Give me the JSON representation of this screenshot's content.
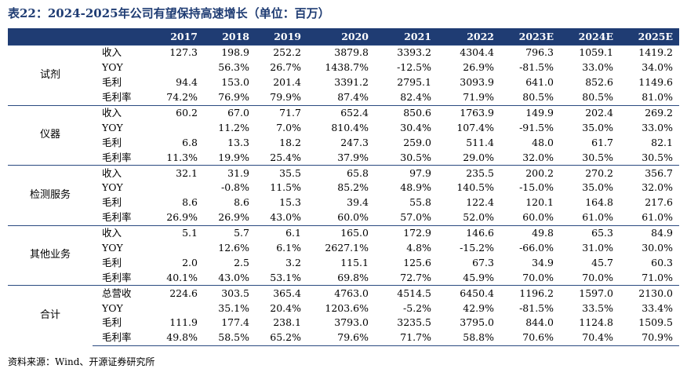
{
  "title": "表22：2024-2025年公司有望保持高速增长（单位：百万）",
  "columns": [
    "",
    "",
    "2017",
    "2018",
    "2019",
    "2020",
    "2021",
    "2022",
    "2023E",
    "2024E",
    "2025E"
  ],
  "groups": [
    {
      "name": "试剂",
      "rows": [
        {
          "metric": "收入",
          "values": [
            "127.3",
            "198.9",
            "252.2",
            "3879.8",
            "3393.2",
            "4304.4",
            "796.3",
            "1059.1",
            "1419.2"
          ]
        },
        {
          "metric": "YOY",
          "values": [
            "",
            "56.3%",
            "26.7%",
            "1438.7%",
            "-12.5%",
            "26.9%",
            "-81.5%",
            "33.0%",
            "34.0%"
          ]
        },
        {
          "metric": "毛利",
          "values": [
            "94.4",
            "153.0",
            "201.4",
            "3391.2",
            "2795.1",
            "3093.9",
            "641.0",
            "852.6",
            "1149.6"
          ]
        },
        {
          "metric": "毛利率",
          "values": [
            "74.2%",
            "76.9%",
            "79.9%",
            "87.4%",
            "82.4%",
            "71.9%",
            "80.5%",
            "80.5%",
            "81.0%"
          ]
        }
      ]
    },
    {
      "name": "仪器",
      "rows": [
        {
          "metric": "收入",
          "values": [
            "60.2",
            "67.0",
            "71.7",
            "652.4",
            "850.6",
            "1763.9",
            "149.9",
            "202.4",
            "269.2"
          ]
        },
        {
          "metric": "YOY",
          "values": [
            "",
            "11.2%",
            "7.0%",
            "810.4%",
            "30.4%",
            "107.4%",
            "-91.5%",
            "35.0%",
            "33.0%"
          ]
        },
        {
          "metric": "毛利",
          "values": [
            "6.8",
            "13.3",
            "18.2",
            "247.3",
            "259.0",
            "511.4",
            "48.0",
            "61.7",
            "82.1"
          ]
        },
        {
          "metric": "毛利率",
          "values": [
            "11.3%",
            "19.9%",
            "25.4%",
            "37.9%",
            "30.5%",
            "29.0%",
            "32.0%",
            "30.5%",
            "30.5%"
          ]
        }
      ]
    },
    {
      "name": "检测服务",
      "rows": [
        {
          "metric": "收入",
          "values": [
            "32.1",
            "31.9",
            "35.5",
            "65.8",
            "97.9",
            "235.5",
            "200.2",
            "270.2",
            "356.7"
          ]
        },
        {
          "metric": "YOY",
          "values": [
            "",
            "-0.8%",
            "11.5%",
            "85.2%",
            "48.9%",
            "140.5%",
            "-15.0%",
            "35.0%",
            "32.0%"
          ]
        },
        {
          "metric": "毛利",
          "values": [
            "8.6",
            "8.6",
            "15.3",
            "39.4",
            "55.8",
            "122.4",
            "120.1",
            "164.8",
            "217.6"
          ]
        },
        {
          "metric": "毛利率",
          "values": [
            "26.9%",
            "26.9%",
            "43.0%",
            "60.0%",
            "57.0%",
            "52.0%",
            "60.0%",
            "61.0%",
            "61.0%"
          ]
        }
      ]
    },
    {
      "name": "其他业务",
      "rows": [
        {
          "metric": "收入",
          "values": [
            "5.1",
            "5.7",
            "6.1",
            "165.0",
            "172.9",
            "146.6",
            "49.8",
            "65.3",
            "84.9"
          ]
        },
        {
          "metric": "YOY",
          "values": [
            "",
            "12.6%",
            "6.1%",
            "2627.1%",
            "4.8%",
            "-15.2%",
            "-66.0%",
            "31.0%",
            "30.0%"
          ]
        },
        {
          "metric": "毛利",
          "values": [
            "2.0",
            "2.5",
            "3.2",
            "115.1",
            "125.6",
            "67.3",
            "34.9",
            "45.7",
            "60.3"
          ]
        },
        {
          "metric": "毛利率",
          "values": [
            "40.1%",
            "43.0%",
            "53.1%",
            "69.8%",
            "72.7%",
            "45.9%",
            "70.0%",
            "70.0%",
            "71.0%"
          ]
        }
      ]
    },
    {
      "name": "合计",
      "rows": [
        {
          "metric": "总营收",
          "values": [
            "224.6",
            "303.5",
            "365.4",
            "4763.0",
            "4514.5",
            "6450.4",
            "1196.2",
            "1597.0",
            "2130.0"
          ]
        },
        {
          "metric": "YOY",
          "values": [
            "",
            "35.1%",
            "20.4%",
            "1203.6%",
            "-5.2%",
            "42.9%",
            "-81.5%",
            "33.5%",
            "33.4%"
          ]
        },
        {
          "metric": "毛利",
          "values": [
            "111.9",
            "177.4",
            "238.1",
            "3793.0",
            "3235.5",
            "3795.0",
            "844.0",
            "1124.8",
            "1509.5"
          ]
        },
        {
          "metric": "毛利率",
          "values": [
            "49.8%",
            "58.5%",
            "65.2%",
            "79.6%",
            "71.7%",
            "58.8%",
            "70.6%",
            "70.4%",
            "70.9%"
          ]
        }
      ]
    }
  ],
  "footer": "资料来源：Wind、开源证券研究所"
}
